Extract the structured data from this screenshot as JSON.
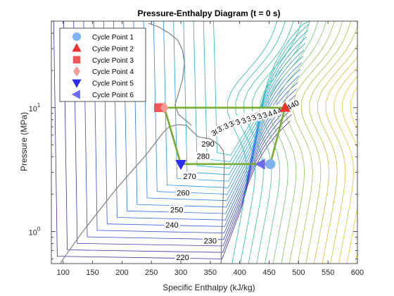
{
  "chart_data": {
    "type": "line",
    "title": "Pressure-Enthalpy Diagram (t = 0 s)",
    "xlabel": "Specific Enthalpy (kJ/kg)",
    "ylabel": "Pressure (MPa)",
    "xlim": [
      80,
      600
    ],
    "ylim": [
      0.55,
      50
    ],
    "yscale": "log",
    "grid": false,
    "legend_position": "top-left",
    "x_ticks": [
      100,
      150,
      200,
      250,
      300,
      350,
      400,
      450,
      500,
      550,
      600
    ],
    "y_ticks": [
      {
        "value": 1,
        "base": "10",
        "exp": "0"
      },
      {
        "value": 10,
        "base": "10",
        "exp": "1"
      }
    ],
    "cycle_points": [
      {
        "name": "Cycle Point 1",
        "h": 452,
        "p": 3.5,
        "marker": "circle",
        "color": "#7fb2f0"
      },
      {
        "name": "Cycle Point 2",
        "h": 477,
        "p": 10,
        "marker": "triangle-up",
        "color": "#e8342c"
      },
      {
        "name": "Cycle Point 3",
        "h": 262,
        "p": 10,
        "marker": "square",
        "color": "#f0575a"
      },
      {
        "name": "Cycle Point 4",
        "h": 272,
        "p": 10,
        "marker": "diamond",
        "color": "#f59a96"
      },
      {
        "name": "Cycle Point 5",
        "h": 300,
        "p": 3.5,
        "marker": "triangle-down",
        "color": "#2b2bf2"
      },
      {
        "name": "Cycle Point 6",
        "h": 436,
        "p": 3.5,
        "marker": "triangle-left",
        "color": "#6b6bf0"
      }
    ],
    "cycle_path": {
      "color": "#77ac30",
      "points": [
        [
          452,
          3.5
        ],
        [
          477,
          10
        ],
        [
          262,
          10
        ],
        [
          272,
          10
        ],
        [
          300,
          3.5
        ],
        [
          436,
          3.5
        ],
        [
          452,
          3.5
        ]
      ]
    },
    "saturation_dome": {
      "color": "#808080",
      "points": [
        [
          80,
          0.42
        ],
        [
          100,
          0.6
        ],
        [
          130,
          0.95
        ],
        [
          160,
          1.45
        ],
        [
          190,
          2.2
        ],
        [
          220,
          3.2
        ],
        [
          240,
          4.1
        ],
        [
          258,
          5.3
        ],
        [
          270,
          6.3
        ],
        [
          280,
          7.0
        ],
        [
          295,
          7.3
        ],
        [
          310,
          7.2
        ],
        [
          320,
          6.4
        ],
        [
          330,
          5.8
        ],
        [
          350,
          5.6
        ],
        [
          365,
          5.0
        ],
        [
          372,
          4.5
        ],
        [
          374,
          3.6
        ],
        [
          373,
          2.5
        ],
        [
          371,
          1.5
        ],
        [
          369,
          0.8
        ],
        [
          368,
          0.45
        ]
      ]
    },
    "critical_curve": {
      "color": "#808080",
      "points": [
        [
          245,
          48
        ],
        [
          262,
          45
        ],
        [
          280,
          40
        ],
        [
          295,
          35
        ],
        [
          303,
          29
        ],
        [
          306,
          23
        ],
        [
          303,
          17
        ],
        [
          296,
          13
        ],
        [
          290,
          10.5
        ],
        [
          296,
          8.8
        ],
        [
          308,
          7.9
        ],
        [
          318,
          7.2
        ]
      ]
    },
    "isotherm_labels": [
      "220",
      "230",
      "240",
      "250",
      "260",
      "270",
      "280",
      "290",
      "300",
      "310",
      "320",
      "330",
      "340",
      "350",
      "360",
      "370",
      "380",
      "390",
      "400",
      "410",
      "420",
      "430",
      "440"
    ],
    "isotherm_colormap": [
      "#3e26a8",
      "#3256e3",
      "#2b84f2",
      "#19aed0",
      "#2ec496",
      "#8dc85a",
      "#d7ba32",
      "#f9d626"
    ]
  }
}
